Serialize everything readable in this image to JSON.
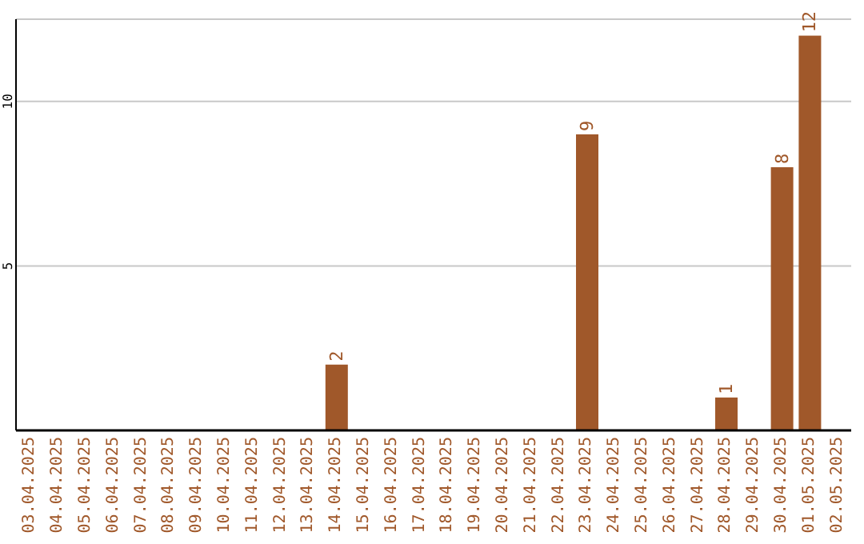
{
  "chart_data": {
    "type": "bar",
    "categories": [
      "03.04.2025",
      "04.04.2025",
      "05.04.2025",
      "06.04.2025",
      "07.04.2025",
      "08.04.2025",
      "09.04.2025",
      "10.04.2025",
      "11.04.2025",
      "12.04.2025",
      "13.04.2025",
      "14.04.2025",
      "15.04.2025",
      "16.04.2025",
      "17.04.2025",
      "18.04.2025",
      "19.04.2025",
      "20.04.2025",
      "21.04.2025",
      "22.04.2025",
      "23.04.2025",
      "24.04.2025",
      "25.04.2025",
      "26.04.2025",
      "27.04.2025",
      "28.04.2025",
      "29.04.2025",
      "30.04.2025",
      "01.05.2025",
      "02.05.2025"
    ],
    "values": [
      0,
      0,
      0,
      0,
      0,
      0,
      0,
      0,
      0,
      0,
      0,
      2,
      0,
      0,
      0,
      0,
      0,
      0,
      0,
      0,
      9,
      0,
      0,
      0,
      0,
      1,
      0,
      8,
      12,
      0
    ],
    "value_labels": [
      null,
      null,
      null,
      null,
      null,
      null,
      null,
      null,
      null,
      null,
      null,
      "2",
      null,
      null,
      null,
      null,
      null,
      null,
      null,
      null,
      "9",
      null,
      null,
      null,
      null,
      "1",
      null,
      "8",
      "12",
      null
    ],
    "color": "#a0582a",
    "ylim": [
      0,
      12.5
    ],
    "yticks": [
      5,
      10
    ],
    "grid": "y"
  }
}
